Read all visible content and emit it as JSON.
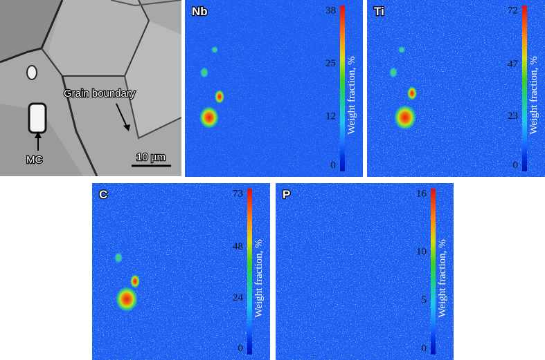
{
  "micrograph": {
    "particle_label": "MC",
    "boundary_label": "Grain boundary",
    "scale_bar": "10 µm"
  },
  "maps": [
    {
      "element": "Nb",
      "colorbar": {
        "ticks": [
          0,
          12,
          25,
          38
        ],
        "label": "Weight fraction, %"
      }
    },
    {
      "element": "Ti",
      "colorbar": {
        "ticks": [
          0,
          23,
          47,
          72
        ],
        "label": "Weight fraction, %"
      }
    },
    {
      "element": "C",
      "colorbar": {
        "ticks": [
          0,
          24,
          48,
          73
        ],
        "label": "Weight fraction, %"
      }
    },
    {
      "element": "P",
      "colorbar": {
        "ticks": [
          0,
          5,
          10,
          16
        ],
        "label": "Weight fraction, %"
      }
    }
  ]
}
